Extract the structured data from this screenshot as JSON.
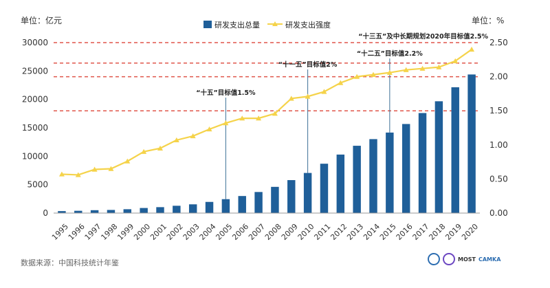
{
  "chart_data": {
    "type": "bar+line",
    "categories": [
      "1995",
      "1996",
      "1997",
      "1998",
      "1999",
      "2000",
      "2001",
      "2002",
      "2003",
      "2004",
      "2005",
      "2006",
      "2007",
      "2008",
      "2009",
      "2010",
      "2011",
      "2012",
      "2013",
      "2014",
      "2015",
      "2016",
      "2017",
      "2018",
      "2019",
      "2020"
    ],
    "bar_series": {
      "name": "研发支出总量",
      "color": "#1f5f99",
      "values": [
        349,
        404,
        509,
        551,
        679,
        896,
        1043,
        1288,
        1540,
        1966,
        2450,
        3003,
        3710,
        4616,
        5802,
        7063,
        8687,
        10298,
        11847,
        13016,
        14170,
        15677,
        17606,
        19678,
        22144,
        24393
      ]
    },
    "line_series": {
      "name": "研发支出强度",
      "color": "#f5d34a",
      "values": [
        0.57,
        0.56,
        0.64,
        0.65,
        0.76,
        0.9,
        0.95,
        1.07,
        1.13,
        1.23,
        1.32,
        1.39,
        1.39,
        1.46,
        1.68,
        1.71,
        1.78,
        1.91,
        2.0,
        2.03,
        2.06,
        2.1,
        2.12,
        2.14,
        2.23,
        2.4
      ]
    },
    "y_left": {
      "unit_label": "单位：亿元",
      "min": 0,
      "max": 30000,
      "ticks": [
        "0",
        "5000",
        "10000",
        "15000",
        "20000",
        "25000",
        "30000"
      ]
    },
    "y_right": {
      "unit_label": "单位：%",
      "min": 0,
      "max": 2.5,
      "ticks": [
        "0.00",
        "0.50",
        "1.00",
        "1.50",
        "2.00",
        "2.50"
      ]
    },
    "targets": [
      {
        "label": "“十五”目标值1.5%",
        "value": 1.5,
        "year": "2005"
      },
      {
        "label": "“十一五”目标值2%",
        "value": 2.0,
        "year": "2010"
      },
      {
        "label": "“十二五”目标值2.2%",
        "value": 2.2,
        "year": "2015"
      },
      {
        "label": "“十三五”及中长期规划2020年目标值2.5%",
        "value": 2.5,
        "year": "2020"
      }
    ],
    "target_line_color": "#e0554a",
    "legend_position": "top-center"
  },
  "source_text": "数据来源：中国科技统计年鉴",
  "logos": {
    "text1": "MOST",
    "text2": "CAMKA"
  }
}
